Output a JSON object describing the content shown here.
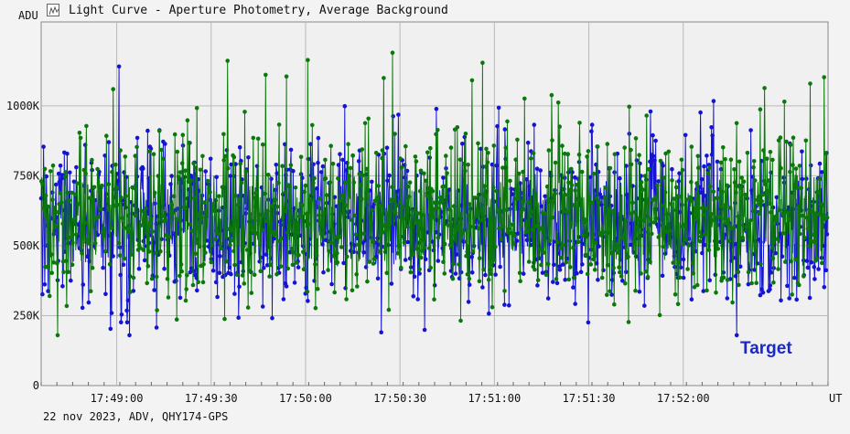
{
  "window": {
    "title": "Light Curve - Aperture Photometry, Average Background",
    "icon": "light-curve-icon"
  },
  "footer": {
    "info": "22 nov 2023, ADV, QHY174-GPS"
  },
  "colors": {
    "background": "#f3f3f3",
    "plot_background": "#f0f0f0",
    "grid": "#b8b8b8",
    "series_blue": "#1414d2",
    "series_green": "#0a780a",
    "target_label": "#1b28c8"
  },
  "chart_data": {
    "type": "line",
    "title": "Light Curve - Aperture Photometry, Average Background",
    "ylabel": "ADU",
    "xlabel": "UT",
    "ylim": [
      0,
      1300000
    ],
    "xlim": [
      "17:48:36",
      "17:52:46"
    ],
    "y_ticks": [
      {
        "value": 0,
        "label": "0"
      },
      {
        "value": 250000,
        "label": "250K"
      },
      {
        "value": 500000,
        "label": "500K"
      },
      {
        "value": 750000,
        "label": "750K"
      },
      {
        "value": 1000000,
        "label": "1000K"
      }
    ],
    "x_ticks": [
      {
        "value": "17:49:00",
        "label": "17:49:00"
      },
      {
        "value": "17:49:30",
        "label": "17:49:30"
      },
      {
        "value": "17:50:00",
        "label": "17:50:00"
      },
      {
        "value": "17:50:30",
        "label": "17:50:30"
      },
      {
        "value": "17:51:00",
        "label": "17:51:00"
      },
      {
        "value": "17:51:30",
        "label": "17:51:30"
      },
      {
        "value": "17:52:00",
        "label": "17:52:00"
      }
    ],
    "grid": true,
    "series": [
      {
        "color": "#1414d2",
        "mean": 580000,
        "spread": 130000,
        "min": 180000,
        "max": 1150000
      },
      {
        "color": "#0a780a",
        "mean": 600000,
        "spread": 130000,
        "min": 180000,
        "max": 1190000
      }
    ],
    "annotation": "Target"
  }
}
